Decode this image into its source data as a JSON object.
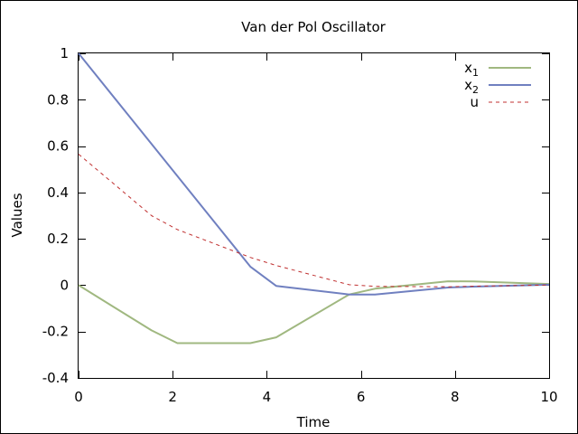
{
  "chart_data": {
    "type": "line",
    "title": "Van der Pol Oscillator",
    "xlabel": "Time",
    "ylabel": "Values",
    "xlim": [
      0,
      10
    ],
    "ylim": [
      -0.4,
      1
    ],
    "xticks": [
      0,
      2,
      4,
      6,
      8,
      10
    ],
    "xtick_labels": [
      "0",
      "2",
      "4",
      "6",
      "8",
      "10"
    ],
    "yticks": [
      -0.4,
      -0.2,
      0,
      0.2,
      0.4,
      0.6,
      0.8,
      1
    ],
    "ytick_labels": [
      "-0.4",
      "-0.2",
      "0",
      "0.2",
      "0.4",
      "0.6",
      "0.8",
      "1"
    ],
    "grid": false,
    "legend_position": "top-right",
    "series": [
      {
        "name": "x",
        "subscript": "1",
        "color": "#a0b880",
        "style": "solid",
        "x": [
          0,
          1.55,
          2.1,
          3.65,
          4.2,
          5.75,
          6.3,
          7.85,
          8.4,
          10
        ],
        "y": [
          0,
          -0.195,
          -0.25,
          -0.25,
          -0.225,
          -0.04,
          -0.015,
          0.017,
          0.016,
          0.005
        ]
      },
      {
        "name": "x",
        "subscript": "2",
        "color": "#7080c0",
        "style": "solid",
        "x": [
          0,
          3.65,
          4.2,
          5.75,
          6.3,
          7.85,
          8.4,
          10
        ],
        "y": [
          1,
          0.08,
          -0.003,
          -0.04,
          -0.04,
          -0.01,
          -0.006,
          0.002
        ]
      },
      {
        "name": "u",
        "subscript": "",
        "color": "#c03030",
        "style": "dashed",
        "x": [
          0,
          1.55,
          2.1,
          3.65,
          4.2,
          5.75,
          6.3,
          7.85,
          8.4,
          10
        ],
        "y": [
          0.565,
          0.3,
          0.24,
          0.12,
          0.085,
          0.002,
          -0.005,
          -0.007,
          -0.004,
          0.001
        ]
      }
    ]
  }
}
